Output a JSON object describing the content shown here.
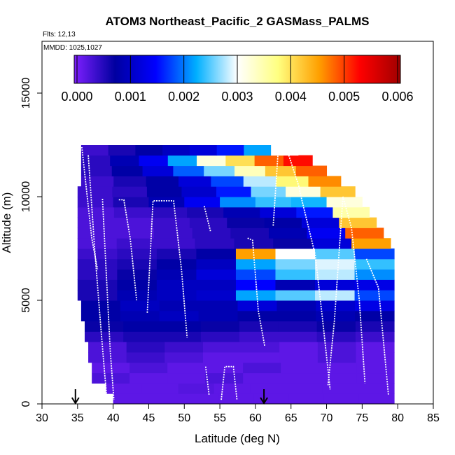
{
  "chart_data": {
    "type": "heatmap",
    "title": "ATOM3 Northeast_Pacific_2 GASMass_PALMS",
    "flights_text": "Flts: 12,13",
    "mmdd_text": "MMDD: 1025,1027",
    "xlabel": "Latitude (deg N)",
    "ylabel": "Altitude (m)",
    "xlim": [
      30,
      85
    ],
    "ylim": [
      0,
      17500
    ],
    "xticks": [
      30,
      35,
      40,
      45,
      50,
      55,
      60,
      65,
      70,
      75,
      80,
      85
    ],
    "yticks": [
      0,
      5000,
      10000,
      15000
    ],
    "colorbar": {
      "min": 0,
      "max": 0.006,
      "ticks": [
        "0.000",
        "0.001",
        "0.002",
        "0.003",
        "0.004",
        "0.005",
        "0.006"
      ],
      "colors": [
        "#7f1fff",
        "#0000a0",
        "#0000ff",
        "#00b0ff",
        "#ffffff",
        "#ffff80",
        "#ffa000",
        "#ff0000",
        "#a00000"
      ]
    },
    "arrows_lat": [
      34.7,
      61.2
    ],
    "altitude_bands": [
      {
        "y0": 0,
        "y1": 500,
        "lat0": 40,
        "lat1": 79.5,
        "values": [
          0.0002,
          0.0002,
          0.0002,
          0.0002,
          0.0002,
          0.0002,
          0.0002,
          0.0002
        ]
      },
      {
        "y0": 500,
        "y1": 1000,
        "lat0": 39,
        "lat1": 79.5,
        "values": [
          0.0002,
          0.0002,
          0.00025,
          0.0002,
          0.0002,
          0.0002,
          0.0002,
          0.0002
        ]
      },
      {
        "y0": 1000,
        "y1": 1500,
        "lat0": 37,
        "lat1": 79.5,
        "values": [
          0.0003,
          0.0002,
          0.0002,
          0.0003,
          0.0002,
          0.0002,
          0.0002,
          0.0002
        ]
      },
      {
        "y0": 1500,
        "y1": 2000,
        "lat0": 37,
        "lat1": 79.5,
        "values": [
          0.0002,
          0.0003,
          0.0002,
          0.0002,
          0.0003,
          0.0002,
          0.0002,
          0.0002
        ]
      },
      {
        "y0": 2000,
        "y1": 2500,
        "lat0": 36.5,
        "lat1": 79.5,
        "values": [
          0.0003,
          0.0004,
          0.0003,
          0.0002,
          0.0002,
          0.0002,
          0.0003,
          0.0002
        ]
      },
      {
        "y0": 2500,
        "y1": 3000,
        "lat0": 36.5,
        "lat1": 79.5,
        "values": [
          0.0003,
          0.0005,
          0.0004,
          0.0003,
          0.0003,
          0.0002,
          0.0003,
          0.0002
        ]
      },
      {
        "y0": 3000,
        "y1": 3500,
        "lat0": 36,
        "lat1": 79.5,
        "values": [
          0.0005,
          0.0006,
          0.0006,
          0.0005,
          0.0004,
          0.0004,
          0.0005,
          0.0004
        ]
      },
      {
        "y0": 3500,
        "y1": 4000,
        "lat0": 36,
        "lat1": 79.5,
        "values": [
          0.0007,
          0.0008,
          0.0008,
          0.0007,
          0.0006,
          0.0006,
          0.0007,
          0.0006
        ]
      },
      {
        "y0": 4000,
        "y1": 4500,
        "lat0": 35.5,
        "lat1": 79.5,
        "values": [
          0.0008,
          0.0009,
          0.001,
          0.0009,
          0.0008,
          0.0008,
          0.0009,
          0.0008
        ]
      },
      {
        "y0": 4500,
        "y1": 5000,
        "lat0": 35.5,
        "lat1": 79.5,
        "values": [
          0.0008,
          0.001,
          0.0009,
          0.0009,
          0.0012,
          0.0009,
          0.0011,
          0.0013
        ]
      },
      {
        "y0": 5000,
        "y1": 5500,
        "lat0": 35,
        "lat1": 79.5,
        "values": [
          0.0006,
          0.0009,
          0.001,
          0.0011,
          0.0022,
          0.0025,
          0.0028,
          0.0018
        ]
      },
      {
        "y0": 5500,
        "y1": 6000,
        "lat0": 35,
        "lat1": 79.5,
        "values": [
          0.0006,
          0.0008,
          0.001,
          0.001,
          0.0015,
          0.0009,
          0.0012,
          0.0013
        ]
      },
      {
        "y0": 6000,
        "y1": 6500,
        "lat0": 35,
        "lat1": 79.5,
        "values": [
          0.0005,
          0.0007,
          0.0009,
          0.0012,
          0.0018,
          0.0024,
          0.0028,
          0.0021
        ]
      },
      {
        "y0": 6500,
        "y1": 7000,
        "lat0": 35,
        "lat1": 79.5,
        "values": [
          0.0005,
          0.0006,
          0.0008,
          0.001,
          0.0022,
          0.0026,
          0.0029,
          0.0024
        ]
      },
      {
        "y0": 7000,
        "y1": 7500,
        "lat0": 35,
        "lat1": 79.5,
        "values": [
          0.0004,
          0.0005,
          0.0006,
          0.0008,
          0.0045,
          0.003,
          0.0025,
          0.0018
        ]
      },
      {
        "y0": 7500,
        "y1": 8000,
        "lat0": 35,
        "lat1": 79,
        "values": [
          0.0003,
          0.0004,
          0.0004,
          0.0005,
          0.0006,
          0.0007,
          0.0012,
          0.0045
        ]
      },
      {
        "y0": 8000,
        "y1": 8500,
        "lat0": 35,
        "lat1": 78,
        "values": [
          0.0003,
          0.0003,
          0.0004,
          0.0005,
          0.0006,
          0.0009,
          0.0014,
          0.0048
        ]
      },
      {
        "y0": 8500,
        "y1": 9000,
        "lat0": 35,
        "lat1": 77,
        "values": [
          0.0003,
          0.0003,
          0.0004,
          0.0005,
          0.0007,
          0.0008,
          0.0012,
          0.0042
        ]
      },
      {
        "y0": 9000,
        "y1": 9500,
        "lat0": 35,
        "lat1": 76,
        "values": [
          0.0003,
          0.0004,
          0.0005,
          0.0006,
          0.0009,
          0.0012,
          0.0016,
          0.0035
        ]
      },
      {
        "y0": 9500,
        "y1": 10000,
        "lat0": 35,
        "lat1": 75,
        "values": [
          0.0004,
          0.0006,
          0.0009,
          0.0014,
          0.0021,
          0.0024,
          0.0023,
          0.0032
        ]
      },
      {
        "y0": 10000,
        "y1": 10500,
        "lat0": 35,
        "lat1": 74,
        "values": [
          0.0004,
          0.0005,
          0.0008,
          0.0011,
          0.0016,
          0.0026,
          0.0032,
          0.0042
        ]
      },
      {
        "y0": 10500,
        "y1": 11000,
        "lat0": 35.5,
        "lat1": 72,
        "values": [
          0.0004,
          0.0006,
          0.0008,
          0.0012,
          0.0018,
          0.0028,
          0.0038,
          0.0046
        ]
      },
      {
        "y0": 11000,
        "y1": 11500,
        "lat0": 35.5,
        "lat1": 70,
        "values": [
          0.0005,
          0.0008,
          0.0012,
          0.0019,
          0.0026,
          0.0034,
          0.0042,
          0.0048
        ]
      },
      {
        "y0": 11500,
        "y1": 12000,
        "lat0": 35.5,
        "lat1": 68,
        "values": [
          0.0005,
          0.0009,
          0.0014,
          0.0022,
          0.0032,
          0.004,
          0.0048,
          0.0052
        ]
      },
      {
        "y0": 12000,
        "y1": 12500,
        "lat0": 35.5,
        "lat1": 66,
        "values": [
          0.0004,
          0.0006,
          0.0008,
          0.001,
          0.0012,
          0.0016,
          0.0022,
          0.003
        ]
      }
    ],
    "flight_tracks": [
      [
        [
          35.6,
          12400
        ],
        [
          36.2,
          10500
        ],
        [
          37,
          8000
        ],
        [
          37.8,
          6500
        ]
      ],
      [
        [
          36.5,
          12000
        ],
        [
          37.4,
          7500
        ],
        [
          38.2,
          4000
        ],
        [
          38.8,
          1500
        ],
        [
          39.2,
          0
        ]
      ],
      [
        [
          38.5,
          9900
        ],
        [
          39,
          6500
        ],
        [
          39.6,
          2500
        ],
        [
          40.1,
          200
        ]
      ],
      [
        [
          40.8,
          9850
        ],
        [
          41.5,
          9850
        ],
        [
          42.4,
          8000
        ],
        [
          43.3,
          5000
        ]
      ],
      [
        [
          44.8,
          4400
        ],
        [
          45.6,
          9800
        ],
        [
          48.5,
          9800
        ],
        [
          49.6,
          6500
        ],
        [
          50.4,
          3200
        ]
      ],
      [
        [
          52.8,
          9550
        ],
        [
          53.7,
          8300
        ]
      ],
      [
        [
          53,
          1800
        ],
        [
          53.5,
          400
        ]
      ],
      [
        [
          55.2,
          200
        ],
        [
          55.7,
          1800
        ],
        [
          56.9,
          1800
        ],
        [
          57.4,
          200
        ]
      ],
      [
        [
          58.9,
          8000
        ],
        [
          59.6,
          7900
        ],
        [
          60.4,
          4500
        ],
        [
          61.3,
          2800
        ]
      ],
      [
        [
          62.5,
          8600
        ],
        [
          63.2,
          12200
        ],
        [
          64.5,
          12200
        ],
        [
          66.3,
          10300
        ]
      ],
      [
        [
          66.2,
          10300
        ],
        [
          68.4,
          7200
        ],
        [
          69.4,
          4200
        ],
        [
          70.5,
          700
        ]
      ],
      [
        [
          70.2,
          900
        ],
        [
          71.1,
          4000
        ],
        [
          72.3,
          10000
        ],
        [
          73.5,
          8500
        ],
        [
          74.6,
          5000
        ],
        [
          75.4,
          1000
        ]
      ],
      [
        [
          75.6,
          7000
        ],
        [
          77.3,
          5600
        ],
        [
          78.7,
          400
        ]
      ]
    ]
  }
}
